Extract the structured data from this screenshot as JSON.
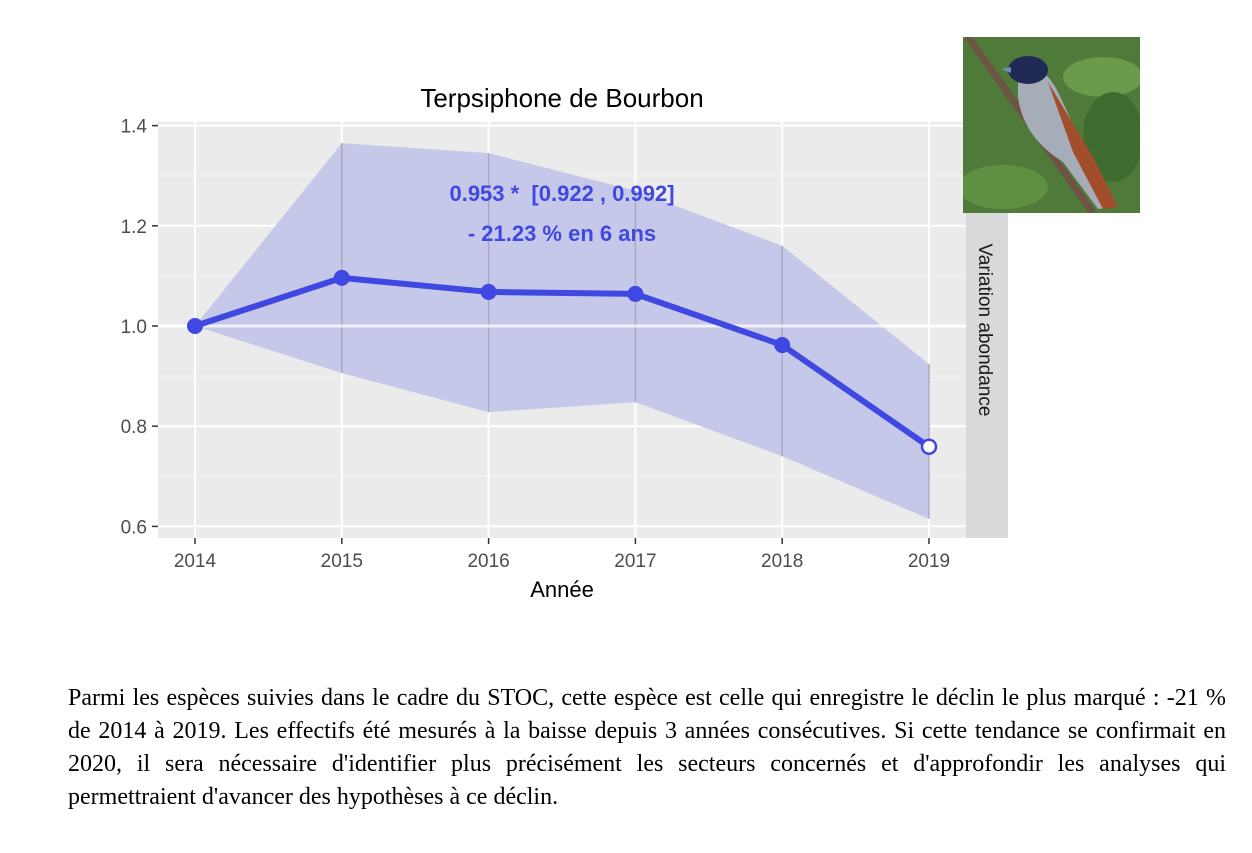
{
  "chart_data": {
    "type": "line",
    "title": "Terpsiphone de Bourbon",
    "xlabel": "Année",
    "ylabel": "",
    "facet_label": "Variation abondance",
    "x": [
      2014,
      2015,
      2016,
      2017,
      2018,
      2019
    ],
    "x_tick_labels": [
      "2014",
      "2015",
      "2016",
      "2017",
      "2018",
      "2019"
    ],
    "y_ticks": [
      0.6,
      0.8,
      1.0,
      1.2,
      1.4
    ],
    "y_tick_labels": [
      "0.6",
      "0.8",
      "1.0",
      "1.2",
      "1.4"
    ],
    "ylim": [
      0.58,
      1.4
    ],
    "reference_line": 1.0,
    "series": [
      {
        "name": "Variation abondance",
        "values": [
          1.0,
          1.096,
          1.068,
          1.064,
          0.962,
          0.759
        ],
        "color": "#3f48e0"
      }
    ],
    "ci_upper": [
      1.0,
      1.365,
      1.345,
      1.27,
      1.16,
      0.924
    ],
    "ci_lower": [
      1.0,
      0.906,
      0.828,
      0.848,
      0.74,
      0.615
    ],
    "annotation_line1": "0.953 *  [0.922 , 0.992]",
    "annotation_line2": "- 21.23 % en 6 ans",
    "grid": true,
    "colors": {
      "line": "#3f48e0",
      "ribbon": "#c6c8ea",
      "panel": "#ebebeb",
      "strip": "#d9d9d9"
    }
  },
  "description_text": "Parmi les espèces suivies dans le cadre du STOC, cette espèce est celle qui enregistre le déclin le plus marqué : -21 % de 2014 à 2019. Les effectifs été mesurés à la baisse depuis 3 années consécutives. Si cette tendance se confirmait en 2020, il sera nécessaire d'identifier plus précisément les secteurs concernés et d'approfondir les analyses qui permettraient d'avancer des hypothèses à ce déclin."
}
